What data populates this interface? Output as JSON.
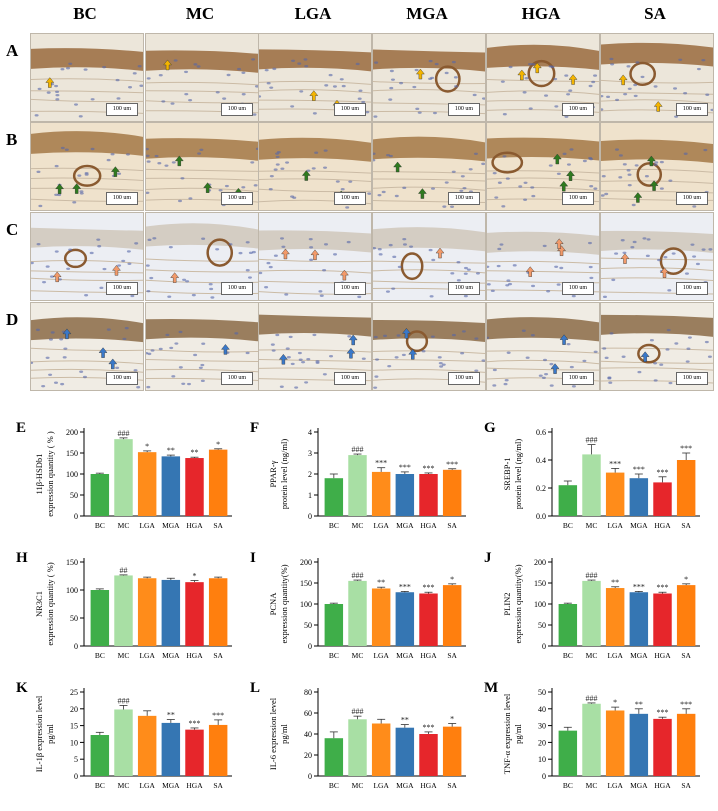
{
  "groups": [
    "BC",
    "MC",
    "LGA",
    "MGA",
    "HGA",
    "SA"
  ],
  "rows": [
    "A",
    "B",
    "C",
    "D"
  ],
  "scale_label": "100 um",
  "colors": {
    "BC": "#3fae49",
    "MC": "#a8dfa4",
    "LGA": "#ff8c1a",
    "MGA": "#3576b3",
    "HGA": "#e6262b",
    "SA": "#ff7f0e",
    "tissue": "#c9a37a",
    "background": "#f2efe9",
    "nuclei": "#5566a8"
  },
  "chart_data": [
    {
      "panel": "E",
      "type": "bar",
      "categories": [
        "BC",
        "MC",
        "LGA",
        "MGA",
        "HGA",
        "SA"
      ],
      "values": [
        100,
        183,
        152,
        142,
        138,
        158
      ],
      "errors": [
        2,
        3,
        3,
        3,
        2,
        2
      ],
      "sig": [
        "",
        "###",
        "*",
        "**",
        "**",
        "*"
      ],
      "ylim": [
        0,
        200
      ],
      "ticks": [
        0,
        50,
        100,
        150,
        200
      ],
      "ylabel": [
        "11β-HSDb1",
        "expression quantity ( % )"
      ]
    },
    {
      "panel": "F",
      "type": "bar",
      "categories": [
        "BC",
        "MC",
        "LGA",
        "MGA",
        "HGA",
        "SA"
      ],
      "values": [
        1.8,
        2.9,
        2.1,
        2.0,
        2.0,
        2.2
      ],
      "errors": [
        0.2,
        0.05,
        0.2,
        0.1,
        0.05,
        0.05
      ],
      "sig": [
        "",
        "###",
        "***",
        "***",
        "***",
        "***"
      ],
      "ylim": [
        0,
        4
      ],
      "ticks": [
        0,
        1,
        2,
        3,
        4
      ],
      "ylabel": [
        "PPAR-γ",
        "protein level (ng/ml)"
      ]
    },
    {
      "panel": "G",
      "type": "bar",
      "categories": [
        "BC",
        "MC",
        "LGA",
        "MGA",
        "HGA",
        "SA"
      ],
      "values": [
        0.22,
        0.44,
        0.31,
        0.27,
        0.24,
        0.4
      ],
      "errors": [
        0.03,
        0.07,
        0.03,
        0.03,
        0.04,
        0.05
      ],
      "sig": [
        "",
        "###",
        "***",
        "***",
        "***",
        "***"
      ],
      "ylim": [
        0,
        0.6
      ],
      "ticks": [
        0.0,
        0.2,
        0.4,
        0.6
      ],
      "ylabel": [
        "SREBP-1",
        "protein level (ng/ml)"
      ]
    },
    {
      "panel": "H",
      "type": "bar",
      "categories": [
        "BC",
        "MC",
        "LGA",
        "MGA",
        "HGA",
        "SA"
      ],
      "values": [
        100,
        126,
        121,
        118,
        114,
        121
      ],
      "errors": [
        2,
        1,
        2,
        3,
        3,
        2
      ],
      "sig": [
        "",
        "##",
        "",
        "",
        "*",
        ""
      ],
      "ylim": [
        0,
        150
      ],
      "ticks": [
        0,
        50,
        100,
        150
      ],
      "ylabel": [
        "NR3C1",
        "expression quantity ( %)"
      ]
    },
    {
      "panel": "I",
      "type": "bar",
      "categories": [
        "BC",
        "MC",
        "LGA",
        "MGA",
        "HGA",
        "SA"
      ],
      "values": [
        100,
        155,
        137,
        128,
        125,
        145
      ],
      "errors": [
        2,
        2,
        3,
        2,
        3,
        3
      ],
      "sig": [
        "",
        "###",
        "**",
        "***",
        "***",
        "*"
      ],
      "ylim": [
        0,
        200
      ],
      "ticks": [
        0,
        50,
        100,
        150,
        200
      ],
      "ylabel": [
        "PCNA",
        "expression quantity(%)"
      ]
    },
    {
      "panel": "J",
      "type": "bar",
      "categories": [
        "BC",
        "MC",
        "LGA",
        "MGA",
        "HGA",
        "SA"
      ],
      "values": [
        100,
        155,
        138,
        128,
        125,
        145
      ],
      "errors": [
        2,
        2,
        3,
        2,
        3,
        3
      ],
      "sig": [
        "",
        "###",
        "**",
        "***",
        "***",
        "*"
      ],
      "ylim": [
        0,
        200
      ],
      "ticks": [
        0,
        50,
        100,
        150,
        200
      ],
      "ylabel": [
        "PLIN2",
        "expression quantity(%)"
      ]
    },
    {
      "panel": "K",
      "type": "bar",
      "categories": [
        "BC",
        "MC",
        "LGA",
        "MGA",
        "HGA",
        "SA"
      ],
      "values": [
        12.2,
        19.8,
        17.9,
        15.8,
        13.8,
        15.2
      ],
      "errors": [
        0.8,
        1.2,
        1.5,
        1.0,
        0.5,
        1.5
      ],
      "sig": [
        "",
        "###",
        "",
        "**",
        "***",
        "***"
      ],
      "ylim": [
        0,
        25
      ],
      "ticks": [
        0,
        5,
        10,
        15,
        20,
        25
      ],
      "ylabel": [
        "IL-1β expression level",
        "pg/ml"
      ]
    },
    {
      "panel": "L",
      "type": "bar",
      "categories": [
        "BC",
        "MC",
        "LGA",
        "MGA",
        "HGA",
        "SA"
      ],
      "values": [
        36,
        54,
        50,
        46,
        40,
        47
      ],
      "errors": [
        6,
        3,
        4,
        3,
        2,
        3
      ],
      "sig": [
        "",
        "###",
        "",
        "**",
        "***",
        "*"
      ],
      "ylim": [
        0,
        80
      ],
      "ticks": [
        0,
        20,
        40,
        60,
        80
      ],
      "ylabel": [
        "IL-6 expression level",
        "pg/ml"
      ]
    },
    {
      "panel": "M",
      "type": "bar",
      "categories": [
        "BC",
        "MC",
        "LGA",
        "MGA",
        "HGA",
        "SA"
      ],
      "values": [
        27,
        43,
        39,
        37,
        34,
        37
      ],
      "errors": [
        2,
        0.5,
        2,
        3,
        1,
        3
      ],
      "sig": [
        "",
        "###",
        "*",
        "**",
        "***",
        "***"
      ],
      "ylim": [
        0,
        50
      ],
      "ticks": [
        0,
        10,
        20,
        30,
        40,
        50
      ],
      "ylabel": [
        "TNF-α expression level",
        "pg/ml"
      ]
    }
  ]
}
